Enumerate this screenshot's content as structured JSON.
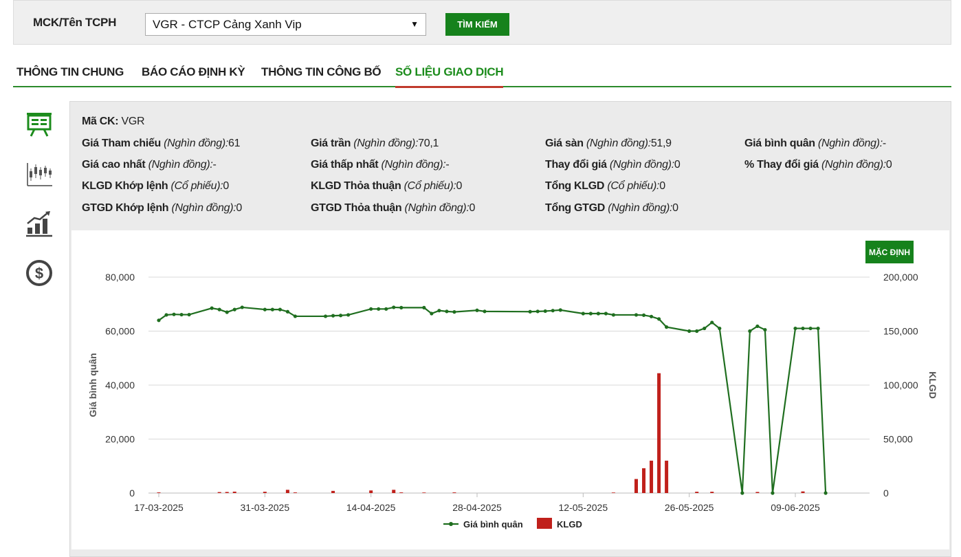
{
  "search": {
    "label": "MCK/Tên TCPH",
    "selected": "VGR - CTCP Cảng Xanh Vip",
    "button": "TÌM KIẾM"
  },
  "tabs": [
    {
      "label": "THÔNG TIN CHUNG"
    },
    {
      "label": "BÁO CÁO ĐỊNH KỲ"
    },
    {
      "label": "THÔNG TIN CÔNG BỐ"
    },
    {
      "label": "SỐ LIỆU GIAO DỊCH"
    }
  ],
  "sidebar_icons": [
    "presentation-board-icon",
    "candlestick-chart-icon",
    "bar-growth-chart-icon",
    "dollar-coin-icon"
  ],
  "info": {
    "ma_ck": {
      "label": "Mã CK:",
      "value": "VGR"
    },
    "rows": [
      [
        {
          "label": "Giá Tham chiếu",
          "unit": "(Nghìn đồng):",
          "value": "61"
        },
        {
          "label": "Giá trần",
          "unit": "(Nghìn đồng):",
          "value": "70,1"
        },
        {
          "label": "Giá sàn",
          "unit": "(Nghìn đồng):",
          "value": "51,9"
        },
        {
          "label": "Giá bình quân",
          "unit": "(Nghìn đồng):",
          "value": "-"
        }
      ],
      [
        {
          "label": "Giá cao nhất",
          "unit": "(Nghìn đồng):",
          "value": "-"
        },
        {
          "label": "Giá thấp nhất",
          "unit": "(Nghìn đồng):",
          "value": "-"
        },
        {
          "label": "Thay đổi giá",
          "unit": "(Nghìn đồng):",
          "value": "0"
        },
        {
          "label": "% Thay đổi giá",
          "unit": "(Nghìn đồng):",
          "value": "0"
        }
      ],
      [
        {
          "label": "KLGD Khớp lệnh",
          "unit": "(Cổ phiếu):",
          "value": "0"
        },
        {
          "label": "KLGD Thỏa thuận",
          "unit": "(Cổ phiếu):",
          "value": "0"
        },
        {
          "label": "Tổng KLGD",
          "unit": "(Cổ phiếu):",
          "value": "0"
        },
        {
          "label": "",
          "unit": "",
          "value": ""
        }
      ],
      [
        {
          "label": "GTGD Khớp lệnh",
          "unit": "(Nghìn đồng):",
          "value": "0"
        },
        {
          "label": "GTGD Thỏa thuận",
          "unit": "(Nghìn đồng):",
          "value": "0"
        },
        {
          "label": "Tổng GTGD",
          "unit": "(Nghìn đồng):",
          "value": "0"
        },
        {
          "label": "",
          "unit": "",
          "value": ""
        }
      ]
    ]
  },
  "chart": {
    "default_button": "MẶC ĐỊNH"
  },
  "colors": {
    "brand_green": "#16821c",
    "line_green": "#1f6e1f",
    "bar_red": "#c0201b",
    "tab_underline": "#c0392b"
  },
  "chart_data": {
    "type": "line+bar",
    "title": "",
    "x_ticks": [
      "17-03-2025",
      "31-03-2025",
      "14-04-2025",
      "28-04-2025",
      "12-05-2025",
      "26-05-2025",
      "09-06-2025"
    ],
    "y_left": {
      "label": "Giá bình quân",
      "ticks": [
        "0",
        "20,000",
        "40,000",
        "60,000",
        "80,000"
      ],
      "range": [
        0,
        80000
      ]
    },
    "y_right": {
      "label": "KLGD",
      "ticks": [
        "0",
        "50,000",
        "100,000",
        "150,000",
        "200,000"
      ],
      "range": [
        0,
        200000
      ]
    },
    "grid": true,
    "legend": {
      "position": "bottom",
      "items": [
        "Giá bình quân",
        "KLGD"
      ]
    },
    "series": [
      {
        "name": "Giá bình quân",
        "kind": "line",
        "dates": [
          "2025-03-17",
          "2025-03-18",
          "2025-03-19",
          "2025-03-20",
          "2025-03-21",
          "2025-03-24",
          "2025-03-25",
          "2025-03-26",
          "2025-03-27",
          "2025-03-28",
          "2025-03-31",
          "2025-04-01",
          "2025-04-02",
          "2025-04-03",
          "2025-04-04",
          "2025-04-08",
          "2025-04-09",
          "2025-04-10",
          "2025-04-11",
          "2025-04-14",
          "2025-04-15",
          "2025-04-16",
          "2025-04-17",
          "2025-04-18",
          "2025-04-21",
          "2025-04-22",
          "2025-04-23",
          "2025-04-24",
          "2025-04-25",
          "2025-04-28",
          "2025-04-29",
          "2025-05-05",
          "2025-05-06",
          "2025-05-07",
          "2025-05-08",
          "2025-05-09",
          "2025-05-12",
          "2025-05-13",
          "2025-05-14",
          "2025-05-15",
          "2025-05-16",
          "2025-05-19",
          "2025-05-20",
          "2025-05-21",
          "2025-05-22",
          "2025-05-23",
          "2025-05-26",
          "2025-05-27",
          "2025-05-28",
          "2025-05-29",
          "2025-05-30",
          "2025-06-02",
          "2025-06-03",
          "2025-06-04",
          "2025-06-05",
          "2025-06-06",
          "2025-06-09",
          "2025-06-10",
          "2025-06-11",
          "2025-06-12",
          "2025-06-13"
        ],
        "values": [
          64000,
          66000,
          66200,
          66100,
          66100,
          68500,
          68000,
          67000,
          68000,
          68800,
          68000,
          68000,
          68000,
          67200,
          65500,
          65500,
          65700,
          65800,
          66000,
          68200,
          68200,
          68200,
          68800,
          68700,
          68700,
          66500,
          67600,
          67300,
          67100,
          67700,
          67300,
          67200,
          67300,
          67400,
          67600,
          67800,
          66500,
          66500,
          66500,
          66500,
          66000,
          66000,
          65900,
          65400,
          64500,
          61500,
          60000,
          60000,
          61000,
          63200,
          61000,
          0,
          60000,
          61800,
          60500,
          0,
          61000,
          61000,
          61000,
          61000,
          0
        ]
      },
      {
        "name": "KLGD",
        "kind": "bar",
        "dates": [
          "2025-03-17",
          "2025-03-25",
          "2025-03-26",
          "2025-03-27",
          "2025-03-31",
          "2025-04-03",
          "2025-04-04",
          "2025-04-09",
          "2025-04-14",
          "2025-04-17",
          "2025-04-18",
          "2025-04-21",
          "2025-04-25",
          "2025-05-16",
          "2025-05-19",
          "2025-05-20",
          "2025-05-21",
          "2025-05-22",
          "2025-05-23",
          "2025-05-27",
          "2025-05-29",
          "2025-05-30",
          "2025-06-04",
          "2025-06-05",
          "2025-06-10",
          "2025-06-11"
        ],
        "values": [
          600,
          900,
          1000,
          1300,
          1200,
          3000,
          600,
          2000,
          2400,
          3000,
          600,
          500,
          600,
          500,
          13000,
          23000,
          30000,
          111000,
          30000,
          1200,
          1200,
          0,
          1000,
          0,
          1500,
          0
        ]
      }
    ]
  }
}
